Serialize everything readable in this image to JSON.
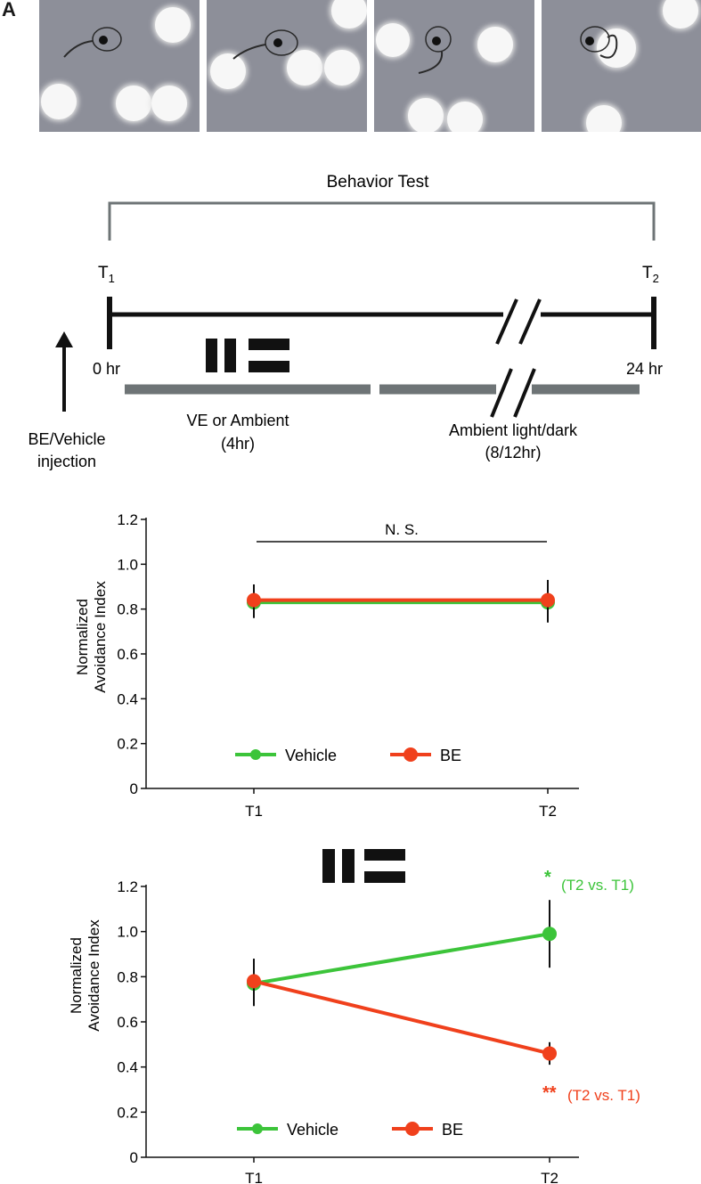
{
  "panel_label": "A",
  "photos": [
    {
      "name": "tadpole-photo-1"
    },
    {
      "name": "tadpole-photo-2"
    },
    {
      "name": "tadpole-photo-3"
    },
    {
      "name": "tadpole-photo-4"
    }
  ],
  "timeline": {
    "behavior_test": "Behavior Test",
    "t1": "T",
    "t1_sub": "1",
    "t2": "T",
    "t2_sub": "2",
    "start": "0 hr",
    "end": "24 hr",
    "injection_line1": "BE/Vehicle",
    "injection_line2": "injection",
    "phase1_line1": "VE or Ambient",
    "phase1_line2": "(4hr)",
    "phase2_line1": "Ambient light/dark",
    "phase2_line2": "(8/12hr)"
  },
  "chart_data": [
    {
      "type": "line",
      "title": "",
      "ylabel_line1": "Normalized",
      "ylabel_line2": "Avoidance Index",
      "categories": [
        "T1",
        "T2"
      ],
      "ylim": [
        0,
        1.2
      ],
      "yticks": [
        "0",
        "0.2",
        "0.4",
        "0.6",
        "0.8",
        "1.0",
        "1.2"
      ],
      "series": [
        {
          "name": "Vehicle",
          "color": "#3cc43a",
          "values": [
            0.83,
            0.83
          ],
          "errors": [
            0.07,
            0.09
          ]
        },
        {
          "name": "BE",
          "color": "#f0401c",
          "values": [
            0.84,
            0.84
          ],
          "errors": [
            0.07,
            0.09
          ]
        }
      ],
      "annotation": "N. S.",
      "legend": "bottom"
    },
    {
      "type": "line",
      "title": "",
      "ylabel_line1": "Normalized",
      "ylabel_line2": "Avoidance Index",
      "categories": [
        "T1",
        "T2"
      ],
      "ylim": [
        0,
        1.2
      ],
      "yticks": [
        "0",
        "0.2",
        "0.4",
        "0.6",
        "0.8",
        "1.0",
        "1.2"
      ],
      "series": [
        {
          "name": "Vehicle",
          "color": "#3cc43a",
          "values": [
            0.77,
            0.99
          ],
          "errors": [
            0.1,
            0.15
          ]
        },
        {
          "name": "BE",
          "color": "#f0401c",
          "values": [
            0.78,
            0.46
          ],
          "errors": [
            0.1,
            0.05
          ]
        }
      ],
      "sig_vehicle_star": "*",
      "sig_vehicle_text": "(T2 vs. T1)",
      "sig_be_star": "**",
      "sig_be_text": "(T2 vs. T1)",
      "legend": "bottom"
    }
  ]
}
